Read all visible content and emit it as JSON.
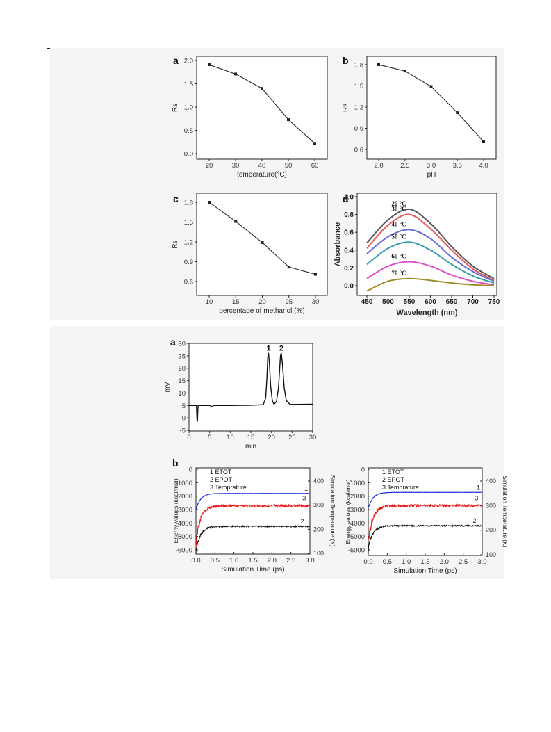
{
  "chart_data": [
    {
      "panel": "a",
      "type": "line",
      "x": [
        20,
        30,
        40,
        50,
        60
      ],
      "series": [
        {
          "values": [
            1.91,
            1.71,
            1.4,
            0.73,
            0.22
          ]
        }
      ],
      "xlabel": "temperature(°C)",
      "ylabel": "Rs",
      "xlim": [
        15,
        65
      ],
      "ylim": [
        0.0,
        2.05
      ],
      "xticks": [
        "20",
        "30",
        "40",
        "50",
        "60"
      ],
      "yticks": [
        "0.0",
        "0.5",
        "1.0",
        "1.5",
        "2.0"
      ]
    },
    {
      "panel": "b",
      "type": "line",
      "x": [
        2.0,
        2.5,
        3.0,
        3.5,
        4.0
      ],
      "series": [
        {
          "values": [
            1.8,
            1.71,
            1.49,
            1.12,
            0.71
          ]
        }
      ],
      "xlabel": "pH",
      "ylabel": "Rs",
      "xlim": [
        1.75,
        4.25
      ],
      "ylim": [
        0.55,
        1.9
      ],
      "xticks": [
        "2.0",
        "2.5",
        "3.0",
        "3.5",
        "4.0"
      ],
      "yticks": [
        "0.6",
        "0.9",
        "1.2",
        "1.5",
        "1.8"
      ]
    },
    {
      "panel": "c",
      "type": "line",
      "x": [
        10,
        15,
        20,
        25,
        30
      ],
      "series": [
        {
          "values": [
            1.8,
            1.51,
            1.19,
            0.82,
            0.71
          ]
        }
      ],
      "xlabel": "percentage of methanol (%)",
      "ylabel": "Rs",
      "xlim": [
        7.5,
        32.5
      ],
      "ylim": [
        0.5,
        1.9
      ],
      "xticks": [
        "10",
        "15",
        "20",
        "25",
        "30"
      ],
      "yticks": [
        "0.6",
        "0.9",
        "1.2",
        "1.5",
        "1.8"
      ]
    },
    {
      "panel": "d",
      "type": "line",
      "x": [
        450,
        500,
        550,
        600,
        650,
        700,
        750
      ],
      "series": [
        {
          "name": "20 °C",
          "color": "#555555",
          "values": [
            0.48,
            0.74,
            0.86,
            0.7,
            0.44,
            0.22,
            0.08
          ]
        },
        {
          "name": "30 °C",
          "color": "#e05a5a",
          "values": [
            0.42,
            0.68,
            0.8,
            0.64,
            0.4,
            0.19,
            0.06
          ]
        },
        {
          "name": "40 °C",
          "color": "#6b6bd6",
          "values": [
            0.36,
            0.55,
            0.63,
            0.53,
            0.32,
            0.16,
            0.05
          ]
        },
        {
          "name": "50 °C",
          "color": "#3a9ea8",
          "values": [
            0.24,
            0.42,
            0.49,
            0.4,
            0.24,
            0.11,
            0.03
          ]
        },
        {
          "name": "60 °C",
          "color": "#e04ec6",
          "values": [
            0.08,
            0.22,
            0.27,
            0.22,
            0.12,
            0.05,
            0.01
          ]
        },
        {
          "name": "70 °C",
          "color": "#a08c2a",
          "values": [
            -0.06,
            0.05,
            0.08,
            0.06,
            0.03,
            0.01,
            0.0
          ]
        }
      ],
      "xlabel": "Wavelength (nm)",
      "ylabel": "Absorbance",
      "xlim": [
        450,
        750
      ],
      "ylim": [
        -0.1,
        1.0
      ],
      "xticks": [
        "450",
        "500",
        "550",
        "600",
        "650",
        "700",
        "750"
      ],
      "yticks": [
        "0.0",
        "0.2",
        "0.4",
        "0.6",
        "0.8",
        "1.0"
      ]
    },
    {
      "panel": "a",
      "type": "line",
      "x": [
        0,
        1.8,
        1.95,
        2.05,
        2.2,
        3,
        5,
        5.5,
        6,
        10,
        15,
        18,
        18.6,
        18.9,
        19.1,
        19.3,
        19.5,
        19.8,
        20.2,
        20.6,
        21.2,
        21.7,
        22.0,
        22.2,
        22.4,
        22.7,
        23.1,
        23.6,
        24.5,
        30
      ],
      "series": [
        {
          "values": [
            5,
            5,
            -1.3,
            -1.3,
            5,
            5,
            5,
            4.5,
            5,
            5,
            5.1,
            5.3,
            8,
            16,
            24.5,
            26,
            22,
            13,
            7,
            5.5,
            6.5,
            12,
            20,
            25.5,
            26,
            21,
            12,
            7,
            5.4,
            5.5
          ]
        }
      ],
      "peak_labels": [
        "1",
        "2"
      ],
      "xlabel": "min",
      "ylabel": "mV",
      "xlim": [
        0,
        30
      ],
      "ylim": [
        -5,
        30
      ],
      "xticks": [
        "0",
        "5",
        "10",
        "15",
        "20",
        "25",
        "30"
      ],
      "yticks": [
        "-5",
        "0",
        "5",
        "10",
        "15",
        "20",
        "25",
        "30"
      ]
    },
    {
      "panel": "b",
      "type": "line",
      "legend": [
        "1 ETOT",
        "2 EPOT",
        "3 Temprature"
      ],
      "curve_labels": [
        "1",
        "3",
        "2"
      ],
      "series": [
        {
          "name": "ETOT",
          "color": "#1f2fe0",
          "level": -1800
        },
        {
          "name": "EPOT",
          "color": "#111111",
          "level": -4250
        },
        {
          "name": "Temprature",
          "color": "#ee1111",
          "level": 297
        }
      ],
      "xlabel": "Simulation Time (ps)",
      "ylabel": "Enerhy values (kcal/mol)",
      "y2label": "Simulation Temperature (K)",
      "xlim": [
        0,
        3
      ],
      "ylim": [
        -6500,
        0
      ],
      "y2lim": [
        100,
        450
      ],
      "xticks": [
        "0.0",
        "0.5",
        "1.0",
        "1.5",
        "2.0",
        "2.5",
        "3.0"
      ],
      "yticks": [
        "0",
        "-1000",
        "-2000",
        "-3000",
        "-4000",
        "-5000",
        "-6000"
      ],
      "y2ticks": [
        "100",
        "200",
        "300",
        "400"
      ]
    },
    {
      "panel": "",
      "type": "line",
      "legend": [
        "1 ETOT",
        "2 EPOT",
        "3 Temprature"
      ],
      "curve_labels": [
        "1",
        "3",
        "2"
      ],
      "series": [
        {
          "name": "ETOT",
          "color": "#1f2fe0",
          "level": -1720
        },
        {
          "name": "EPOT",
          "color": "#111111",
          "level": -4200
        },
        {
          "name": "Temprature",
          "color": "#ee1111",
          "level": 300
        }
      ],
      "xlabel": "Simulation Time (ps)",
      "ylabel": "Energy values (kcal/mol)",
      "y2label": "Simulation Temperature (K)",
      "xlim": [
        0,
        3
      ],
      "ylim": [
        -6500,
        0
      ],
      "y2lim": [
        100,
        450
      ],
      "xticks": [
        "0.0",
        "0.5",
        "1.0",
        "1.5",
        "2.0",
        "2.5",
        "3.0"
      ],
      "yticks": [
        "0",
        "-1000",
        "-2000",
        "-3000",
        "-4000",
        "-5000",
        "-6000"
      ],
      "y2ticks": [
        "100",
        "200",
        "300",
        "400"
      ]
    }
  ]
}
